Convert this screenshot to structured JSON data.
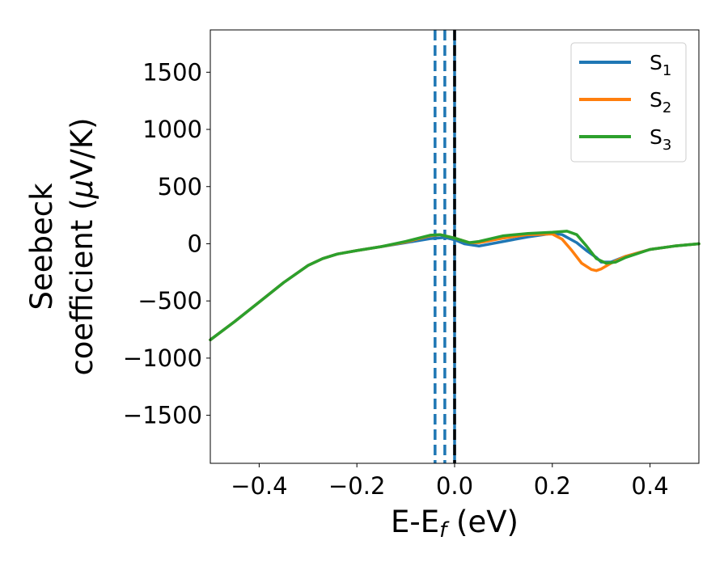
{
  "chart_data": {
    "type": "line",
    "xlabel": {
      "base": "E-E",
      "sub": "f",
      "suffix": " (eV)"
    },
    "ylabel": {
      "line1": "Seebeck",
      "line2_prefix": "coefficient  (",
      "line2_mu": "μ",
      "line2_suffix": "V/K)"
    },
    "xlim": [
      -0.5,
      0.5
    ],
    "ylim": [
      -1920,
      1870
    ],
    "xticks": [
      -0.4,
      -0.2,
      0.0,
      0.2,
      0.4
    ],
    "xtick_labels": [
      "−0.4",
      "−0.2",
      "0.0",
      "0.2",
      "0.4"
    ],
    "yticks": [
      -1500,
      -1000,
      -500,
      0,
      500,
      1000,
      1500
    ],
    "ytick_labels": [
      "−1500",
      "−1000",
      "−500",
      "0",
      "500",
      "1000",
      "1500"
    ],
    "grid": false,
    "legend_position": "top-right",
    "vlines": [
      {
        "x": -0.04,
        "color": "#1f77b4",
        "style": "dashed"
      },
      {
        "x": -0.02,
        "color": "#1f77b4",
        "style": "dashed"
      },
      {
        "x": 0.0,
        "color": "#1f77b4",
        "style": "solid"
      },
      {
        "x": 0.0,
        "color": "#000000",
        "style": "dashed"
      }
    ],
    "series": [
      {
        "name": "S",
        "sub": "1",
        "color": "#1f77b4",
        "x": [
          -0.5,
          -0.45,
          -0.4,
          -0.35,
          -0.3,
          -0.27,
          -0.24,
          -0.2,
          -0.15,
          -0.1,
          -0.05,
          -0.02,
          0.0,
          0.02,
          0.05,
          0.1,
          0.15,
          0.2,
          0.22,
          0.25,
          0.27,
          0.29,
          0.3,
          0.32,
          0.35,
          0.4,
          0.45,
          0.5
        ],
        "y": [
          -840,
          -680,
          -510,
          -340,
          -190,
          -130,
          -90,
          -60,
          -25,
          10,
          45,
          55,
          35,
          0,
          -20,
          20,
          60,
          90,
          80,
          10,
          -60,
          -120,
          -160,
          -160,
          -110,
          -50,
          -20,
          0
        ]
      },
      {
        "name": "S",
        "sub": "2",
        "color": "#ff7f0e",
        "x": [
          -0.5,
          -0.45,
          -0.4,
          -0.35,
          -0.3,
          -0.27,
          -0.24,
          -0.2,
          -0.15,
          -0.1,
          -0.05,
          -0.03,
          0.0,
          0.03,
          0.05,
          0.1,
          0.15,
          0.2,
          0.22,
          0.24,
          0.26,
          0.28,
          0.29,
          0.3,
          0.32,
          0.35,
          0.4,
          0.45,
          0.5
        ],
        "y": [
          -840,
          -680,
          -510,
          -340,
          -190,
          -130,
          -90,
          -60,
          -25,
          15,
          70,
          80,
          50,
          10,
          10,
          50,
          80,
          85,
          40,
          -60,
          -170,
          -225,
          -235,
          -220,
          -170,
          -110,
          -50,
          -20,
          0
        ]
      },
      {
        "name": "S",
        "sub": "3",
        "color": "#2ca02c",
        "x": [
          -0.5,
          -0.45,
          -0.4,
          -0.35,
          -0.3,
          -0.27,
          -0.24,
          -0.2,
          -0.15,
          -0.1,
          -0.05,
          -0.03,
          0.0,
          0.03,
          0.05,
          0.1,
          0.15,
          0.2,
          0.23,
          0.25,
          0.27,
          0.29,
          0.31,
          0.33,
          0.35,
          0.4,
          0.45,
          0.5
        ],
        "y": [
          -840,
          -680,
          -510,
          -340,
          -190,
          -130,
          -90,
          -60,
          -25,
          20,
          75,
          80,
          50,
          10,
          20,
          70,
          90,
          100,
          110,
          80,
          -20,
          -130,
          -170,
          -160,
          -120,
          -50,
          -20,
          0
        ]
      }
    ]
  }
}
